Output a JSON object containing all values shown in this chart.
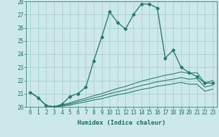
{
  "xlabel": "Humidex (Indice chaleur)",
  "x_values": [
    0,
    1,
    2,
    3,
    4,
    5,
    6,
    7,
    8,
    9,
    10,
    11,
    12,
    13,
    14,
    15,
    16,
    17,
    18,
    19,
    20,
    21,
    22,
    23
  ],
  "series": [
    {
      "y": [
        21.1,
        20.7,
        20.1,
        20.0,
        20.2,
        20.8,
        21.0,
        21.5,
        23.5,
        25.3,
        27.2,
        26.4,
        25.9,
        27.0,
        27.8,
        27.8,
        27.5,
        23.7,
        24.3,
        23.0,
        22.6,
        22.3,
        21.8,
        21.8
      ],
      "color": "#2a7a6a",
      "lw": 1.0,
      "marker": "D",
      "ms": 2.2
    },
    {
      "y": [
        21.1,
        20.7,
        20.1,
        20.0,
        20.15,
        20.3,
        20.5,
        20.65,
        20.85,
        21.0,
        21.2,
        21.4,
        21.55,
        21.75,
        21.95,
        22.1,
        22.25,
        22.4,
        22.5,
        22.65,
        22.55,
        22.6,
        21.8,
        22.0
      ],
      "color": "#2a7a6a",
      "lw": 0.8,
      "marker": null,
      "ms": 0
    },
    {
      "y": [
        21.1,
        20.7,
        20.1,
        20.0,
        20.1,
        20.22,
        20.38,
        20.52,
        20.68,
        20.82,
        21.0,
        21.15,
        21.28,
        21.45,
        21.62,
        21.75,
        21.9,
        22.0,
        22.1,
        22.22,
        22.1,
        22.15,
        21.5,
        21.65
      ],
      "color": "#2a7a6a",
      "lw": 0.8,
      "marker": null,
      "ms": 0
    },
    {
      "y": [
        21.1,
        20.7,
        20.1,
        20.0,
        20.05,
        20.14,
        20.27,
        20.38,
        20.52,
        20.62,
        20.78,
        20.92,
        21.02,
        21.17,
        21.32,
        21.42,
        21.56,
        21.65,
        21.75,
        21.85,
        21.72,
        21.72,
        21.18,
        21.35
      ],
      "color": "#2a7a6a",
      "lw": 0.8,
      "marker": null,
      "ms": 0
    }
  ],
  "ylim": [
    20,
    28
  ],
  "xlim": [
    -0.5,
    23.5
  ],
  "yticks": [
    20,
    21,
    22,
    23,
    24,
    25,
    26,
    27,
    28
  ],
  "xticks": [
    0,
    1,
    2,
    3,
    4,
    5,
    6,
    7,
    8,
    9,
    10,
    11,
    12,
    13,
    14,
    15,
    16,
    17,
    18,
    19,
    20,
    21,
    22,
    23
  ],
  "xtick_labels": [
    "0",
    "1",
    "2",
    "3",
    "4",
    "5",
    "6",
    "7",
    "8",
    "9",
    "10",
    "11",
    "12",
    "13",
    "14",
    "15",
    "16",
    "17",
    "18",
    "19",
    "20",
    "21",
    "22",
    "23"
  ],
  "bg_color": "#cce8e8",
  "grid_color": "#9ec8c8",
  "line_color": "#1e6b5a",
  "tick_fontsize": 5.5,
  "xlabel_fontsize": 6.5
}
